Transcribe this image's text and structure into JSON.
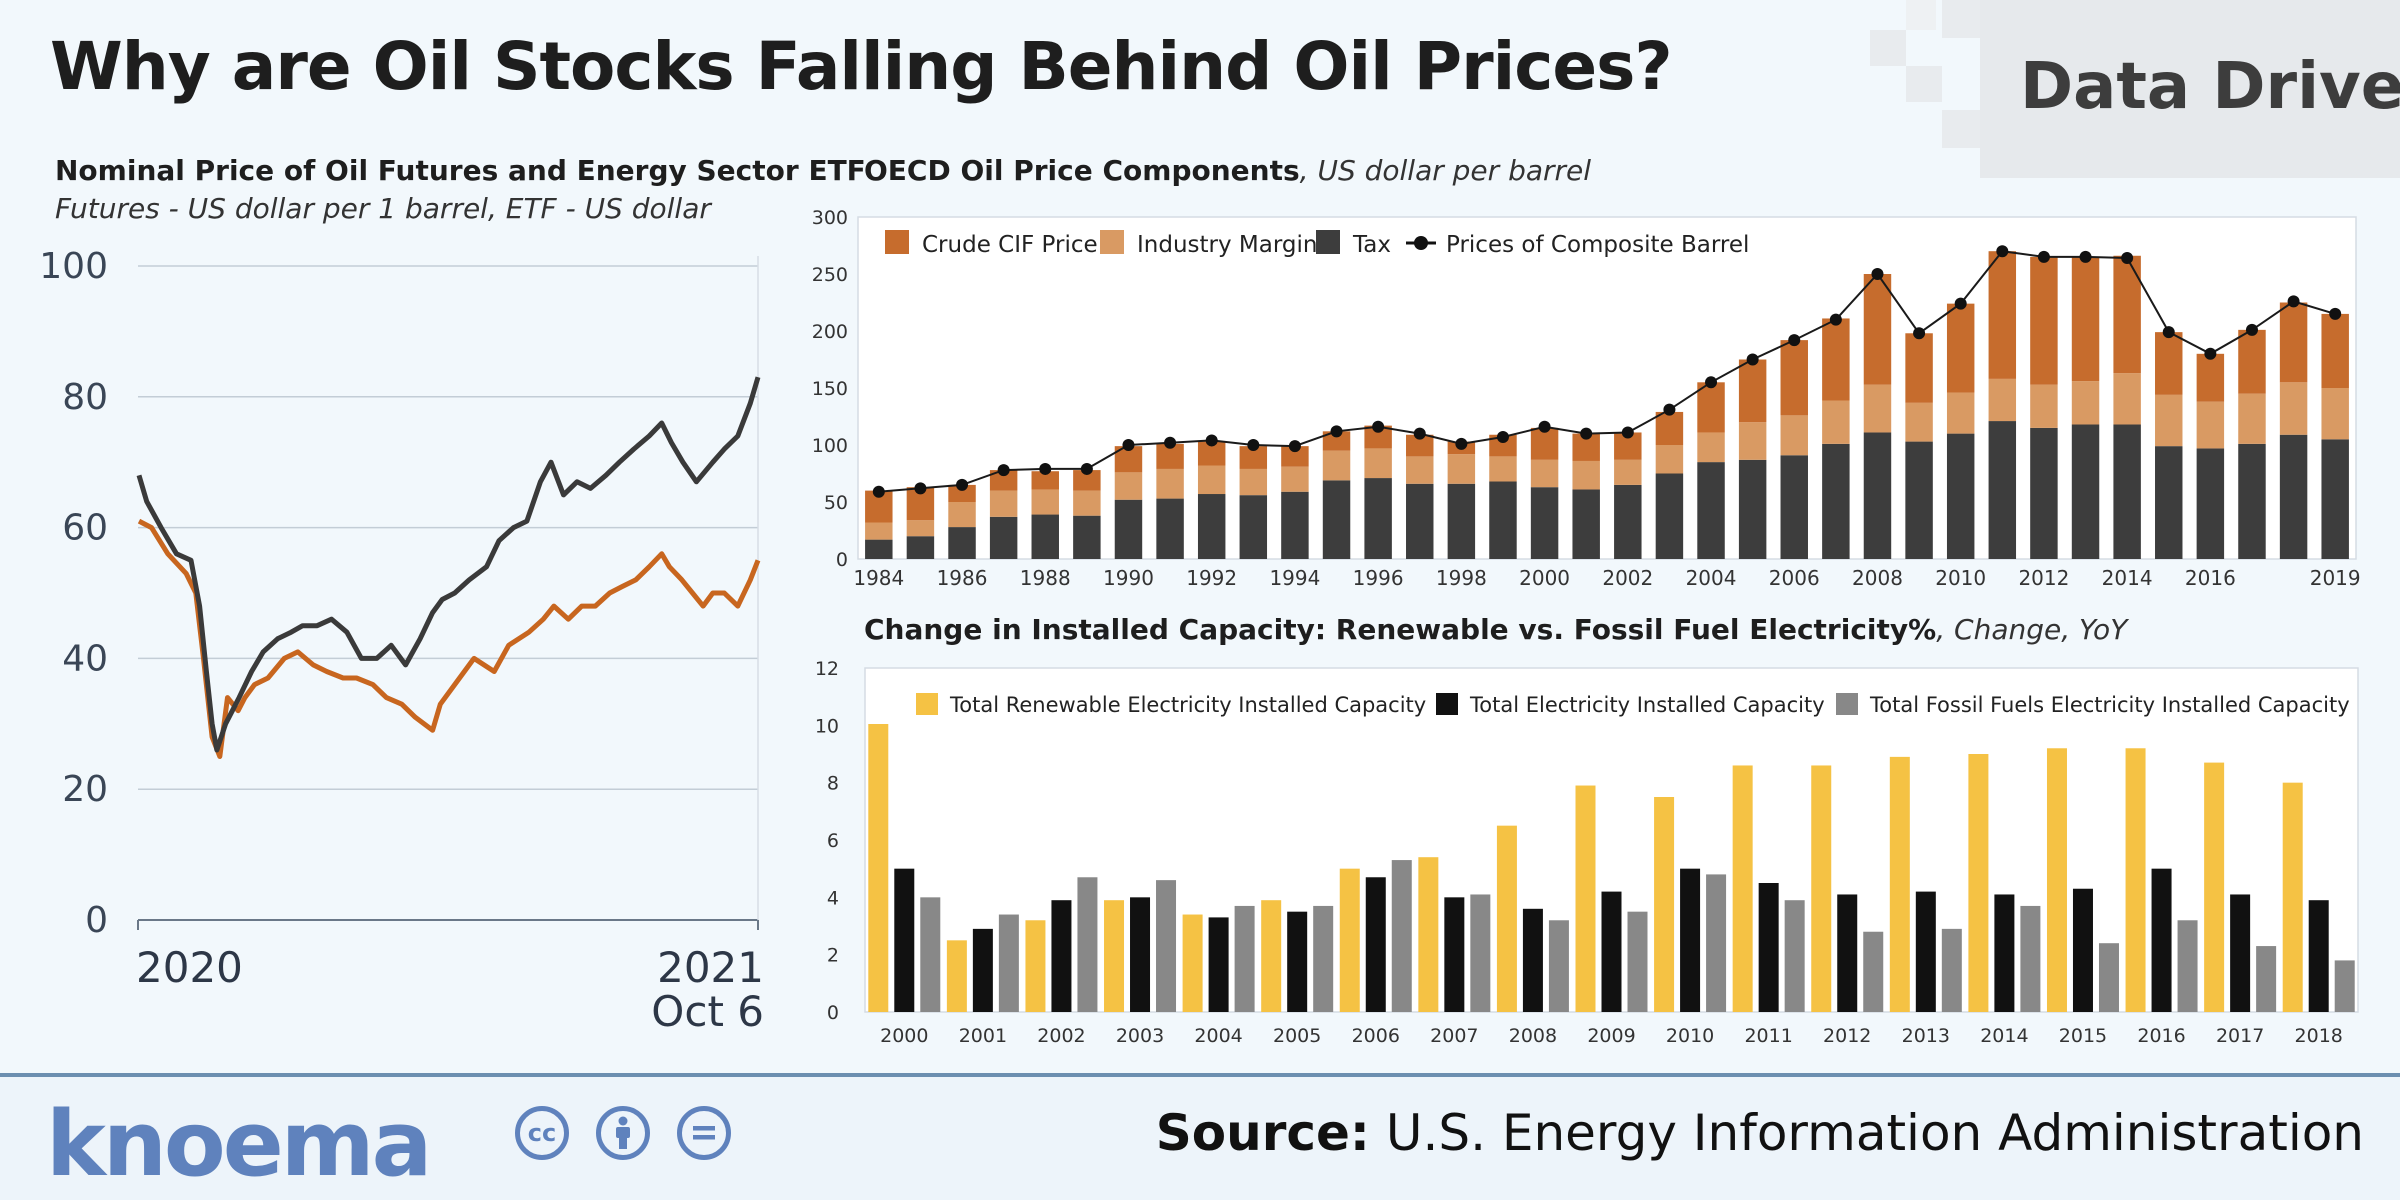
{
  "header": {
    "title": "Why are Oil Stocks Falling Behind Oil Prices?",
    "badge": "Data Driven"
  },
  "footer": {
    "logo": "knoema",
    "cc_icons": [
      "cc-icon",
      "by-icon",
      "equal-icon"
    ],
    "source_label": "Source:",
    "source_text": "U.S. Energy Information Administration"
  },
  "colors": {
    "futures": "#c8661f",
    "etf": "#3a3a3a",
    "crude": "#c66c2d",
    "margin": "#d99a63",
    "tax": "#3d3d3d",
    "renewable": "#f5c244",
    "total": "#111111",
    "fossil": "#888888"
  },
  "chart_data": [
    {
      "type": "line",
      "title": "Nominal Price of Oil Futures and Energy Sector ETF",
      "subtitle": "Futures - US dollar per 1 barrel, ETF - US dollar",
      "x_tick_labels": [
        "2020",
        "2021",
        "Oct 6"
      ],
      "yticks": [
        0,
        20,
        40,
        60,
        80,
        100
      ],
      "ylim": [
        0,
        100
      ],
      "x_range": [
        "2020-01-01",
        "2021-10-06"
      ],
      "series": [
        {
          "color": "#c8661f",
          "x": [
            "2020-01-02",
            "2020-01-15",
            "2020-02-01",
            "2020-02-20",
            "2020-03-01",
            "2020-03-09",
            "2020-03-18",
            "2020-03-26",
            "2020-04-03",
            "2020-04-14",
            "2020-04-21",
            "2020-05-01",
            "2020-05-15",
            "2020-06-01",
            "2020-06-15",
            "2020-07-01",
            "2020-07-15",
            "2020-08-01",
            "2020-08-15",
            "2020-09-01",
            "2020-09-15",
            "2020-10-01",
            "2020-10-15",
            "2020-11-02",
            "2020-11-10",
            "2020-11-25",
            "2020-12-15",
            "2021-01-05",
            "2021-01-20",
            "2021-02-10",
            "2021-02-25",
            "2021-03-08",
            "2021-03-23",
            "2021-04-06",
            "2021-04-20",
            "2021-05-05",
            "2021-05-18",
            "2021-06-01",
            "2021-06-15",
            "2021-06-28",
            "2021-07-06",
            "2021-07-19",
            "2021-07-30",
            "2021-08-10",
            "2021-08-20",
            "2021-09-01",
            "2021-09-15",
            "2021-09-28",
            "2021-10-06"
          ],
          "y": [
            61,
            60,
            56,
            53,
            50,
            40,
            28,
            25,
            34,
            32,
            34,
            36,
            37,
            40,
            41,
            39,
            38,
            37,
            37,
            36,
            34,
            33,
            31,
            29,
            33,
            36,
            40,
            38,
            42,
            44,
            46,
            48,
            46,
            48,
            48,
            50,
            51,
            52,
            54,
            56,
            54,
            52,
            50,
            48,
            50,
            50,
            48,
            52,
            55
          ]
        },
        {
          "color": "#3a3a3a",
          "x": [
            "2020-01-02",
            "2020-01-10",
            "2020-01-25",
            "2020-02-10",
            "2020-02-25",
            "2020-03-05",
            "2020-03-12",
            "2020-03-18",
            "2020-03-23",
            "2020-04-01",
            "2020-04-15",
            "2020-04-28",
            "2020-05-10",
            "2020-05-25",
            "2020-06-08",
            "2020-06-20",
            "2020-07-05",
            "2020-07-20",
            "2020-08-05",
            "2020-08-20",
            "2020-09-05",
            "2020-09-20",
            "2020-10-05",
            "2020-10-20",
            "2020-11-02",
            "2020-11-12",
            "2020-11-25",
            "2020-12-10",
            "2020-12-28",
            "2021-01-10",
            "2021-01-25",
            "2021-02-08",
            "2021-02-22",
            "2021-03-05",
            "2021-03-18",
            "2021-04-01",
            "2021-04-15",
            "2021-05-01",
            "2021-05-15",
            "2021-05-30",
            "2021-06-15",
            "2021-06-28",
            "2021-07-08",
            "2021-07-20",
            "2021-08-03",
            "2021-08-20",
            "2021-09-01",
            "2021-09-15",
            "2021-09-28",
            "2021-10-06"
          ],
          "y": [
            68,
            64,
            60,
            56,
            55,
            48,
            38,
            30,
            26,
            30,
            34,
            38,
            41,
            43,
            44,
            45,
            45,
            46,
            44,
            40,
            40,
            42,
            39,
            43,
            47,
            49,
            50,
            52,
            54,
            58,
            60,
            61,
            67,
            70,
            65,
            67,
            66,
            68,
            70,
            72,
            74,
            76,
            73,
            70,
            67,
            70,
            72,
            74,
            79,
            83
          ]
        }
      ]
    },
    {
      "type": "bar",
      "stacked": true,
      "title": "OECD Oil Price Components",
      "subtitle": "US dollar per barrel",
      "categories": [
        1984,
        1985,
        1986,
        1987,
        1988,
        1989,
        1990,
        1991,
        1992,
        1993,
        1994,
        1995,
        1996,
        1997,
        1998,
        1999,
        2000,
        2001,
        2002,
        2003,
        2004,
        2005,
        2006,
        2007,
        2008,
        2009,
        2010,
        2011,
        2012,
        2013,
        2014,
        2015,
        2016,
        2017,
        2018,
        2019
      ],
      "x_tick_labels": [
        "1984",
        "1986",
        "1988",
        "1990",
        "1992",
        "1994",
        "1996",
        "1998",
        "2000",
        "2002",
        "2004",
        "2006",
        "2008",
        "2010",
        "2012",
        "2014",
        "2016",
        "2019"
      ],
      "yticks": [
        0,
        50,
        100,
        150,
        200,
        250,
        300
      ],
      "ylim": [
        0,
        300
      ],
      "legend_position": "top-left",
      "series": [
        {
          "name": "Tax",
          "color": "#3d3d3d",
          "values": [
            17,
            20,
            28,
            37,
            39,
            38,
            52,
            53,
            57,
            56,
            59,
            69,
            71,
            66,
            66,
            68,
            63,
            61,
            65,
            75,
            85,
            87,
            91,
            101,
            111,
            103,
            110,
            121,
            115,
            118,
            118,
            99,
            97,
            101,
            109,
            105
          ]
        },
        {
          "name": "Industry Margin",
          "color": "#d99a63",
          "values": [
            15,
            14,
            22,
            23,
            22,
            22,
            24,
            26,
            25,
            23,
            22,
            26,
            26,
            24,
            26,
            22,
            24,
            25,
            22,
            25,
            26,
            33,
            35,
            38,
            42,
            34,
            36,
            37,
            38,
            38,
            45,
            45,
            41,
            44,
            46,
            45
          ]
        },
        {
          "name": "Crude CIF Price",
          "color": "#c66c2d",
          "values": [
            28,
            29,
            15,
            18,
            16,
            18,
            23,
            22,
            21,
            20,
            18,
            17,
            20,
            19,
            11,
            19,
            28,
            24,
            24,
            29,
            44,
            55,
            66,
            72,
            97,
            61,
            78,
            112,
            112,
            109,
            103,
            55,
            42,
            56,
            70,
            65
          ]
        },
        {
          "name": "Prices of Composite Barrel",
          "color": "#1a1a1a",
          "type": "line",
          "values": [
            59,
            62,
            65,
            78,
            79,
            79,
            100,
            102,
            104,
            100,
            99,
            112,
            116,
            110,
            101,
            107,
            116,
            110,
            111,
            131,
            155,
            175,
            192,
            210,
            250,
            198,
            224,
            270,
            265,
            265,
            264,
            199,
            180,
            201,
            226,
            215
          ]
        }
      ]
    },
    {
      "type": "bar",
      "title": "Change in Installed Capacity: Renewable vs. Fossil Fuel Electricity%",
      "subtitle": "Change, YoY",
      "categories": [
        "2000",
        "2001",
        "2002",
        "2003",
        "2004",
        "2005",
        "2006",
        "2007",
        "2008",
        "2009",
        "2010",
        "2011",
        "2012",
        "2013",
        "2014",
        "2015",
        "2016",
        "2017",
        "2018"
      ],
      "yticks": [
        0,
        2,
        4,
        6,
        8,
        10,
        12
      ],
      "ylim": [
        0,
        12
      ],
      "legend_position": "top",
      "series": [
        {
          "name": "Total Renewable Electricity Installed Capacity",
          "color": "#f5c244",
          "values": [
            10.8,
            2.5,
            3.2,
            3.9,
            3.4,
            3.9,
            5.0,
            5.4,
            6.5,
            7.9,
            7.5,
            8.6,
            8.6,
            8.9,
            9.0,
            9.2,
            9.2,
            8.7,
            8.0
          ]
        },
        {
          "name": "Total Electricity Installed Capacity",
          "color": "#111111",
          "values": [
            5.0,
            2.9,
            3.9,
            4.0,
            3.3,
            3.5,
            4.7,
            4.0,
            3.6,
            4.2,
            5.0,
            4.5,
            4.1,
            4.2,
            4.1,
            4.3,
            5.0,
            4.1,
            3.9
          ]
        },
        {
          "name": "Total Fossil Fuels Electricity Installed Capacity",
          "color": "#888888",
          "values": [
            4.0,
            3.4,
            4.7,
            4.6,
            3.7,
            3.7,
            5.3,
            4.1,
            3.2,
            3.5,
            4.8,
            3.9,
            2.8,
            2.9,
            3.7,
            2.4,
            3.2,
            2.3,
            1.8
          ]
        }
      ]
    }
  ]
}
